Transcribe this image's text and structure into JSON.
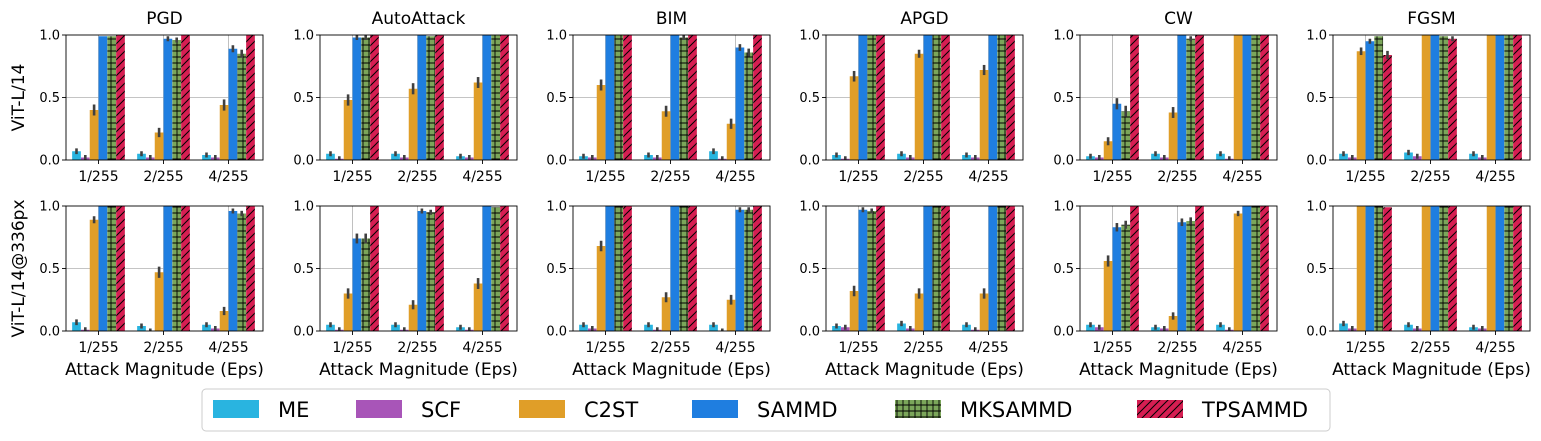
{
  "chart_data": {
    "type": "bar",
    "row_labels": [
      "ViT-L/14",
      "ViT-L/14@336px"
    ],
    "column_titles": [
      "PGD",
      "AutoAttack",
      "BIM",
      "APGD",
      "CW",
      "FGSM"
    ],
    "categories": [
      "1/255",
      "2/255",
      "4/255"
    ],
    "xlabel": "Attack Magnitude (Eps)",
    "ylim": [
      0,
      1.0
    ],
    "yticks": [
      "0.0",
      "0.5",
      "1.0"
    ],
    "grid": true,
    "legend_position": "bottom",
    "methods": [
      {
        "name": "ME",
        "color": "#29b4e0",
        "hatch": "none"
      },
      {
        "name": "SCF",
        "color": "#a855b8",
        "hatch": "none"
      },
      {
        "name": "C2ST",
        "color": "#e09e28",
        "hatch": "none"
      },
      {
        "name": "SAMMD",
        "color": "#1f7ee0",
        "hatch": "none"
      },
      {
        "name": "MKSAMMD",
        "color": "#7ba65a",
        "hatch": "grid"
      },
      {
        "name": "TPSAMMD",
        "color": "#d61e52",
        "hatch": "diagonal"
      }
    ],
    "panels": [
      {
        "row": 0,
        "col": 0,
        "title": "PGD",
        "values": [
          [
            0.07,
            0.02,
            0.4,
            0.99,
            0.99,
            1.0
          ],
          [
            0.05,
            0.02,
            0.22,
            0.97,
            0.96,
            1.0
          ],
          [
            0.04,
            0.02,
            0.44,
            0.89,
            0.85,
            1.0
          ]
        ]
      },
      {
        "row": 0,
        "col": 1,
        "title": "AutoAttack",
        "values": [
          [
            0.05,
            0.01,
            0.48,
            0.98,
            0.98,
            1.0
          ],
          [
            0.05,
            0.02,
            0.57,
            1.0,
            0.99,
            1.0
          ],
          [
            0.03,
            0.02,
            0.62,
            1.0,
            1.0,
            1.0
          ]
        ]
      },
      {
        "row": 0,
        "col": 2,
        "title": "BIM",
        "values": [
          [
            0.03,
            0.02,
            0.6,
            1.0,
            1.0,
            1.0
          ],
          [
            0.04,
            0.02,
            0.39,
            1.0,
            0.98,
            1.0
          ],
          [
            0.07,
            0.01,
            0.29,
            0.9,
            0.86,
            1.0
          ]
        ]
      },
      {
        "row": 0,
        "col": 3,
        "title": "APGD",
        "values": [
          [
            0.04,
            0.01,
            0.67,
            1.0,
            1.0,
            1.0
          ],
          [
            0.05,
            0.02,
            0.85,
            1.0,
            1.0,
            1.0
          ],
          [
            0.04,
            0.02,
            0.72,
            1.0,
            1.0,
            1.0
          ]
        ]
      },
      {
        "row": 0,
        "col": 4,
        "title": "CW",
        "values": [
          [
            0.03,
            0.02,
            0.15,
            0.45,
            0.39,
            1.0
          ],
          [
            0.05,
            0.02,
            0.38,
            1.0,
            0.97,
            1.0
          ],
          [
            0.05,
            0.01,
            1.0,
            1.0,
            1.0,
            1.0
          ]
        ]
      },
      {
        "row": 0,
        "col": 5,
        "title": "FGSM",
        "values": [
          [
            0.05,
            0.02,
            0.87,
            0.95,
            0.99,
            0.84
          ],
          [
            0.06,
            0.03,
            1.0,
            1.0,
            0.99,
            0.97
          ],
          [
            0.05,
            0.02,
            1.0,
            1.0,
            1.0,
            1.0
          ]
        ]
      },
      {
        "row": 1,
        "col": 0,
        "title": "PGD",
        "values": [
          [
            0.07,
            0.01,
            0.89,
            1.0,
            1.0,
            1.0
          ],
          [
            0.04,
            0.0,
            0.47,
            1.0,
            1.0,
            1.0
          ],
          [
            0.05,
            0.02,
            0.16,
            0.96,
            0.94,
            1.0
          ]
        ]
      },
      {
        "row": 1,
        "col": 1,
        "title": "AutoAttack",
        "values": [
          [
            0.05,
            0.01,
            0.3,
            0.74,
            0.74,
            1.0
          ],
          [
            0.05,
            0.01,
            0.21,
            0.96,
            0.95,
            1.0
          ],
          [
            0.03,
            0.01,
            0.38,
            1.0,
            0.99,
            1.0
          ]
        ]
      },
      {
        "row": 1,
        "col": 2,
        "title": "BIM",
        "values": [
          [
            0.05,
            0.02,
            0.68,
            1.0,
            1.0,
            1.0
          ],
          [
            0.05,
            0.01,
            0.27,
            1.0,
            1.0,
            1.0
          ],
          [
            0.05,
            0.0,
            0.25,
            0.97,
            0.97,
            1.0
          ]
        ]
      },
      {
        "row": 1,
        "col": 3,
        "title": "APGD",
        "values": [
          [
            0.04,
            0.03,
            0.32,
            0.97,
            0.96,
            1.0
          ],
          [
            0.06,
            0.02,
            0.3,
            1.0,
            1.0,
            1.0
          ],
          [
            0.05,
            0.01,
            0.3,
            1.0,
            1.0,
            1.0
          ]
        ]
      },
      {
        "row": 1,
        "col": 4,
        "title": "CW",
        "values": [
          [
            0.05,
            0.03,
            0.56,
            0.83,
            0.85,
            1.0
          ],
          [
            0.03,
            0.02,
            0.12,
            0.87,
            0.88,
            1.0
          ],
          [
            0.05,
            0.01,
            0.94,
            1.0,
            1.0,
            1.0
          ]
        ]
      },
      {
        "row": 1,
        "col": 5,
        "title": "FGSM",
        "values": [
          [
            0.06,
            0.02,
            1.0,
            1.0,
            1.0,
            0.99
          ],
          [
            0.05,
            0.02,
            1.0,
            1.0,
            1.0,
            1.0
          ],
          [
            0.03,
            0.02,
            1.0,
            1.0,
            1.0,
            1.0
          ]
        ]
      }
    ]
  }
}
